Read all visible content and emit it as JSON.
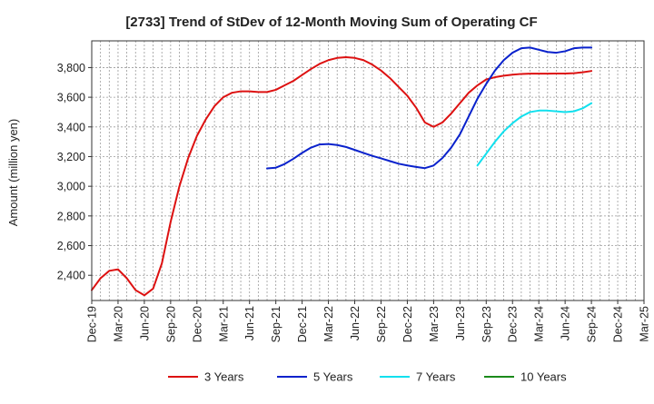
{
  "chart_data": {
    "type": "line",
    "title": "[2733]  Trend of StDev of 12-Month Moving Sum of Operating CF",
    "ylabel": "Amount (million yen)",
    "xlabel": "",
    "ylim": [
      2230,
      3980
    ],
    "yticks": [
      2400,
      2600,
      2800,
      3000,
      3200,
      3400,
      3600,
      3800
    ],
    "ytick_labels": [
      "2,400",
      "2,600",
      "2,800",
      "3,000",
      "3,200",
      "3,400",
      "3,600",
      "3,800"
    ],
    "x_start": "2019-12",
    "x_end": "2025-03",
    "x_tick_labels": [
      "Dec-19",
      "Mar-20",
      "Jun-20",
      "Sep-20",
      "Dec-20",
      "Mar-21",
      "Jun-21",
      "Sep-21",
      "Dec-21",
      "Mar-22",
      "Jun-22",
      "Sep-22",
      "Dec-22",
      "Mar-23",
      "Jun-23",
      "Sep-23",
      "Dec-23",
      "Mar-24",
      "Jun-24",
      "Sep-24",
      "Dec-24",
      "Mar-25"
    ],
    "grid": true,
    "legend_position": "bottom",
    "series": [
      {
        "name": "3 Years",
        "color": "#dd1111",
        "x": [
          "2019-12",
          "2020-01",
          "2020-02",
          "2020-03",
          "2020-04",
          "2020-05",
          "2020-06",
          "2020-07",
          "2020-08",
          "2020-09",
          "2020-10",
          "2020-11",
          "2020-12",
          "2021-01",
          "2021-02",
          "2021-03",
          "2021-04",
          "2021-05",
          "2021-06",
          "2021-07",
          "2021-08",
          "2021-09",
          "2021-10",
          "2021-11",
          "2021-12",
          "2022-01",
          "2022-02",
          "2022-03",
          "2022-04",
          "2022-05",
          "2022-06",
          "2022-07",
          "2022-08",
          "2022-09",
          "2022-10",
          "2022-11",
          "2022-12",
          "2023-01",
          "2023-02",
          "2023-03",
          "2023-04",
          "2023-05",
          "2023-06",
          "2023-07",
          "2023-08",
          "2023-09",
          "2023-10",
          "2023-11",
          "2023-12",
          "2024-01",
          "2024-02",
          "2024-03",
          "2024-04",
          "2024-05",
          "2024-06",
          "2024-07",
          "2024-08",
          "2024-09"
        ],
        "values": [
          2300,
          2380,
          2430,
          2440,
          2380,
          2300,
          2265,
          2310,
          2480,
          2760,
          3000,
          3190,
          3340,
          3450,
          3540,
          3600,
          3630,
          3640,
          3640,
          3635,
          3635,
          3650,
          3680,
          3710,
          3750,
          3790,
          3825,
          3850,
          3865,
          3870,
          3865,
          3850,
          3820,
          3780,
          3730,
          3670,
          3610,
          3530,
          3430,
          3400,
          3430,
          3490,
          3560,
          3630,
          3680,
          3720,
          3735,
          3745,
          3752,
          3757,
          3759,
          3759,
          3759,
          3760,
          3760,
          3762,
          3768,
          3777
        ]
      },
      {
        "name": "5 Years",
        "color": "#0a22cc",
        "x": [
          "2021-08",
          "2021-09",
          "2021-10",
          "2021-11",
          "2021-12",
          "2022-01",
          "2022-02",
          "2022-03",
          "2022-04",
          "2022-05",
          "2022-06",
          "2022-07",
          "2022-08",
          "2022-09",
          "2022-10",
          "2022-11",
          "2022-12",
          "2023-01",
          "2023-02",
          "2023-03",
          "2023-04",
          "2023-05",
          "2023-06",
          "2023-07",
          "2023-08",
          "2023-09",
          "2023-10",
          "2023-11",
          "2023-12",
          "2024-01",
          "2024-02",
          "2024-03",
          "2024-04",
          "2024-05",
          "2024-06",
          "2024-07",
          "2024-08",
          "2024-09"
        ],
        "values": [
          3120,
          3125,
          3150,
          3185,
          3225,
          3260,
          3282,
          3285,
          3278,
          3265,
          3245,
          3225,
          3205,
          3188,
          3170,
          3152,
          3140,
          3130,
          3122,
          3140,
          3190,
          3260,
          3350,
          3470,
          3590,
          3690,
          3780,
          3850,
          3900,
          3930,
          3935,
          3920,
          3905,
          3900,
          3910,
          3930,
          3935,
          3935
        ]
      },
      {
        "name": "7 Years",
        "color": "#11e0ee",
        "x": [
          "2023-08",
          "2023-09",
          "2023-10",
          "2023-11",
          "2023-12",
          "2024-01",
          "2024-02",
          "2024-03",
          "2024-04",
          "2024-05",
          "2024-06",
          "2024-07",
          "2024-08",
          "2024-09"
        ],
        "values": [
          3140,
          3220,
          3300,
          3370,
          3425,
          3470,
          3500,
          3510,
          3510,
          3505,
          3500,
          3505,
          3525,
          3560
        ]
      },
      {
        "name": "10 Years",
        "color": "#1a8a1a",
        "x": [],
        "values": []
      }
    ]
  }
}
